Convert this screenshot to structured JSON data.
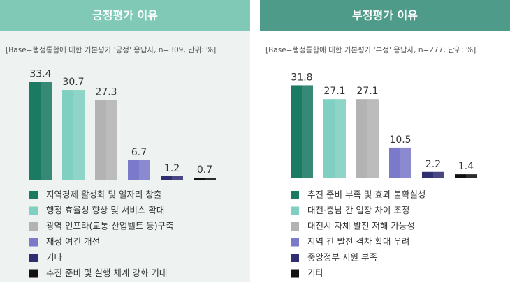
{
  "chart_data": [
    {
      "type": "bar",
      "title": "긍정평가 이유",
      "subtitle": "[Base=행정통합에 대한 기본평가 '긍정' 응답자, n=309, 단위: %]",
      "categories": [
        "지역경제 활성화 및 일자리 창출",
        "행정 효율성 향상 및 서비스 확대",
        "광역 인프라(교통·산업벨트 등)구축",
        "재정 여건 개선",
        "기타",
        "추진 준비 및 실행 체계 강화 기대"
      ],
      "values": [
        33.4,
        30.7,
        27.3,
        6.7,
        1.2,
        0.7
      ],
      "colors": [
        "#1b7a62",
        "#7fd0c0",
        "#b3b3b3",
        "#7b79c9",
        "#2f2e70",
        "#111111"
      ]
    },
    {
      "type": "bar",
      "title": "부정평가 이유",
      "subtitle": "[Base=행정통합에 대한 기본평가 '부정' 응답자, n=277, 단위: %]",
      "categories": [
        "추진 준비 부족 및 효과 불확실성",
        "대전·충남 간 입장 차이 조정",
        "대전시 자체 발전 저해 가능성",
        "지역 간 발전 격차 확대 우려",
        "중앙정부 지원 부족",
        "기타"
      ],
      "values": [
        31.8,
        27.1,
        27.1,
        10.5,
        2.2,
        1.4
      ],
      "colors": [
        "#1b7a62",
        "#7fd0c0",
        "#b3b3b3",
        "#7b79c9",
        "#2f2e70",
        "#111111"
      ]
    }
  ]
}
